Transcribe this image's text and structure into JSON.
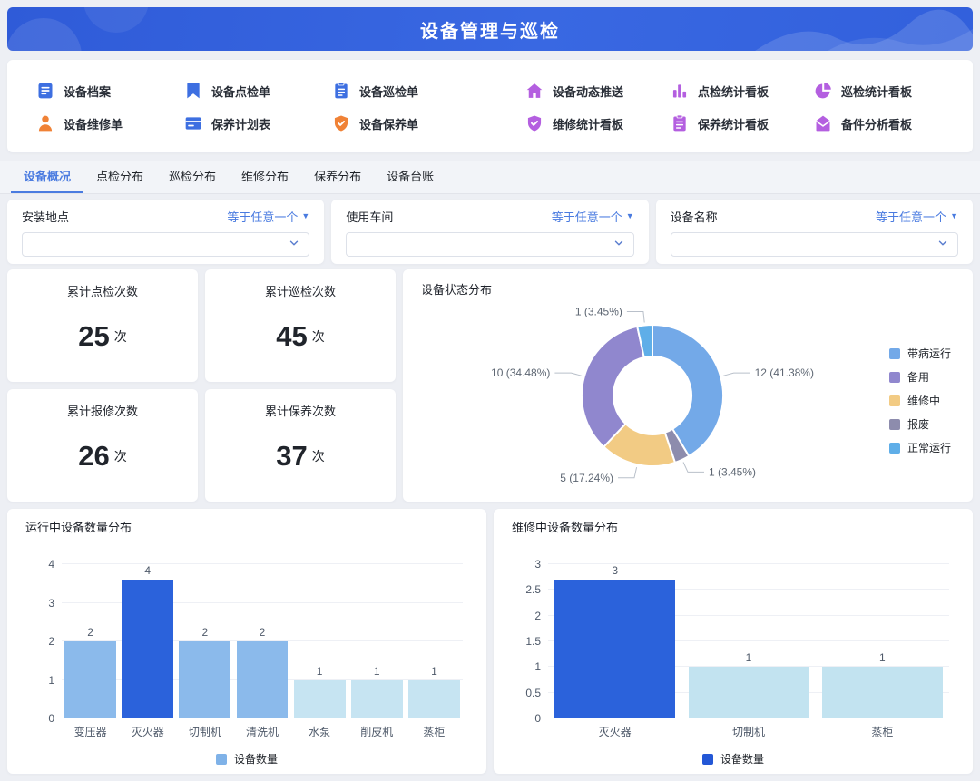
{
  "header": {
    "title": "设备管理与巡检",
    "accent_color": "#3564dd"
  },
  "menu": {
    "items": [
      {
        "key": "equipment-archive",
        "label": "设备档案",
        "icon": "document-icon",
        "color": "#3d6fe1"
      },
      {
        "key": "spot-check-order",
        "label": "设备点检单",
        "icon": "bookmark-icon",
        "color": "#3d6fe1"
      },
      {
        "key": "inspection-order",
        "label": "设备巡检单",
        "icon": "clipboard-icon",
        "color": "#3d6fe1"
      },
      {
        "key": "equipment-news-push",
        "label": "设备动态推送",
        "icon": "home-icon",
        "color": "#b45fe0"
      },
      {
        "key": "spot-check-stats-board",
        "label": "点检统计看板",
        "icon": "bar-chart-icon",
        "color": "#b45fe0"
      },
      {
        "key": "inspection-stats-board",
        "label": "巡检统计看板",
        "icon": "pie-chart-icon",
        "color": "#b45fe0"
      },
      {
        "key": "repair-order",
        "label": "设备维修单",
        "icon": "user-icon",
        "color": "#f08236"
      },
      {
        "key": "maintenance-plan",
        "label": "保养计划表",
        "icon": "card-icon",
        "color": "#3d6fe1"
      },
      {
        "key": "maintenance-order",
        "label": "设备保养单",
        "icon": "shield-check-icon",
        "color": "#f08236"
      },
      {
        "key": "repair-stats-board",
        "label": "维修统计看板",
        "icon": "shield-check-icon",
        "color": "#b45fe0"
      },
      {
        "key": "maintenance-stats-board",
        "label": "保养统计看板",
        "icon": "clipboard-icon",
        "color": "#b45fe0"
      },
      {
        "key": "spare-parts-board",
        "label": "备件分析看板",
        "icon": "mail-icon",
        "color": "#b45fe0"
      }
    ]
  },
  "tabs": {
    "items": [
      {
        "key": "overview",
        "label": "设备概况",
        "active": true
      },
      {
        "key": "spot-check-dist",
        "label": "点检分布",
        "active": false
      },
      {
        "key": "inspection-dist",
        "label": "巡检分布",
        "active": false
      },
      {
        "key": "repair-dist",
        "label": "维修分布",
        "active": false
      },
      {
        "key": "maintenance-dist",
        "label": "保养分布",
        "active": false
      },
      {
        "key": "ledger",
        "label": "设备台账",
        "active": false
      }
    ]
  },
  "filters": [
    {
      "key": "install-location",
      "label": "安装地点",
      "operator": "等于任意一个",
      "value": ""
    },
    {
      "key": "workshop",
      "label": "使用车间",
      "operator": "等于任意一个",
      "value": ""
    },
    {
      "key": "equipment-name",
      "label": "设备名称",
      "operator": "等于任意一个",
      "value": ""
    }
  ],
  "stats": [
    {
      "key": "spot-check-count",
      "title": "累计点检次数",
      "value": "25",
      "unit": "次"
    },
    {
      "key": "inspection-count",
      "title": "累计巡检次数",
      "value": "45",
      "unit": "次"
    },
    {
      "key": "repair-count",
      "title": "累计报修次数",
      "value": "26",
      "unit": "次"
    },
    {
      "key": "maintenance-count",
      "title": "累计保养次数",
      "value": "37",
      "unit": "次"
    }
  ],
  "chart_data": [
    {
      "type": "pie",
      "title": "设备状态分布",
      "donut": true,
      "legend_position": "right",
      "slices": [
        {
          "label": "带病运行",
          "value": 12,
          "pct": "41.38%",
          "color": "#73a9e8"
        },
        {
          "label": "报废",
          "value": 1,
          "pct": "3.45%",
          "color": "#8d8cad"
        },
        {
          "label": "维修中",
          "value": 5,
          "pct": "17.24%",
          "color": "#f2cb84"
        },
        {
          "label": "备用",
          "value": 10,
          "pct": "34.48%",
          "color": "#9087ce"
        },
        {
          "label": "正常运行",
          "value": 1,
          "pct": "3.45%",
          "color": "#5faee8"
        }
      ],
      "legend": [
        "带病运行",
        "备用",
        "维修中",
        "报废",
        "正常运行"
      ]
    },
    {
      "type": "bar",
      "title": "运行中设备数量分布",
      "categories": [
        "变压器",
        "灭火器",
        "切制机",
        "清洗机",
        "水泵",
        "削皮机",
        "蒸柜"
      ],
      "values": [
        2,
        4,
        2,
        2,
        1,
        1,
        1
      ],
      "bar_colors": [
        "#8bbaeb",
        "#2b62db",
        "#8bbaeb",
        "#8bbaeb",
        "#c6e4f2",
        "#c6e4f2",
        "#c6e4f2"
      ],
      "ylim": [
        0,
        4
      ],
      "yticks": [
        0,
        1,
        2,
        3,
        4
      ],
      "grid": true,
      "legend": [
        {
          "label": "设备数量",
          "color": "#7fb2e8"
        }
      ]
    },
    {
      "type": "bar",
      "title": "维修中设备数量分布",
      "categories": [
        "灭火器",
        "切制机",
        "蒸柜"
      ],
      "values": [
        3,
        1,
        1
      ],
      "bar_colors": [
        "#2b62db",
        "#c2e3f0",
        "#c2e3f0"
      ],
      "ylim": [
        0,
        3
      ],
      "yticks": [
        0,
        0.5,
        1,
        1.5,
        2,
        2.5,
        3
      ],
      "grid": true,
      "legend": [
        {
          "label": "设备数量",
          "color": "#2357d6"
        }
      ]
    }
  ]
}
